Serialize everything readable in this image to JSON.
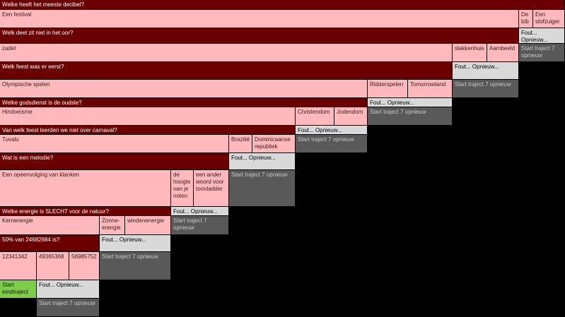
{
  "questions": [
    {
      "question": "Welke heeft het meeste decibel?",
      "answers": [
        "Een festival",
        "De bib",
        "Een stofzuiger"
      ],
      "fout": "Fout... Opnieuw...",
      "restart": "Start traject 7 opnieuw"
    },
    {
      "question": "Welk deel zit niet in het oor?",
      "answers": [
        "zadel",
        "slakkenhuis",
        "Aambeeld"
      ],
      "fout": "Fout... Opnieuw...",
      "restart": "Start traject 7 opnieuw"
    },
    {
      "question": "Welk feest was er eerst?",
      "answers": [
        "Olympische spelen",
        "Ridderspelen",
        "Tomorrowland"
      ],
      "fout": "Fout... Opnieuw...",
      "restart": "Start traject 7 opnieuw"
    },
    {
      "question": "Welke godsdienst is de oudste?",
      "answers": [
        "Hindoeïsme",
        "Christendom",
        "Jodendom"
      ],
      "fout": "Fout... Opnieuw...",
      "restart": "Start traject 7 opnieuw"
    },
    {
      "question": "Van welk feest leerden we niet over carnaval?",
      "answers": [
        "Tuvalu",
        "Brazilië",
        "Dominicaanse republiek"
      ],
      "fout": "Fout... Opnieuw...",
      "restart": "Start traject 7 opnieuw"
    },
    {
      "question": "Wat is een melodie?",
      "answers": [
        "Een opeenvolging van klanken",
        "de hoogte van je noten",
        "een ander woord voor toonladder"
      ],
      "fout": "Fout... Opnieuw...",
      "restart": "Start traject 7 opnieuw"
    },
    {
      "question": "Welke energie is SLECHT voor de natuur?",
      "answers": [
        "Kernenergie",
        "Zonne-energie",
        "windenenergie"
      ],
      "fout": "Fout... Opnieuw...",
      "restart": "Start traject 7 opnieuw"
    },
    {
      "question": "50% van 24682684 is?",
      "answers": [
        "12341342",
        "49365368",
        "56985752"
      ],
      "fout": "Fout... Opnieuw...",
      "restart": "Start traject 7 opnieuw"
    }
  ],
  "final": {
    "start": "Start eindtraject",
    "fout": "Fout... Opnieuw...",
    "restart": "Start traject 7 opnieuw"
  }
}
